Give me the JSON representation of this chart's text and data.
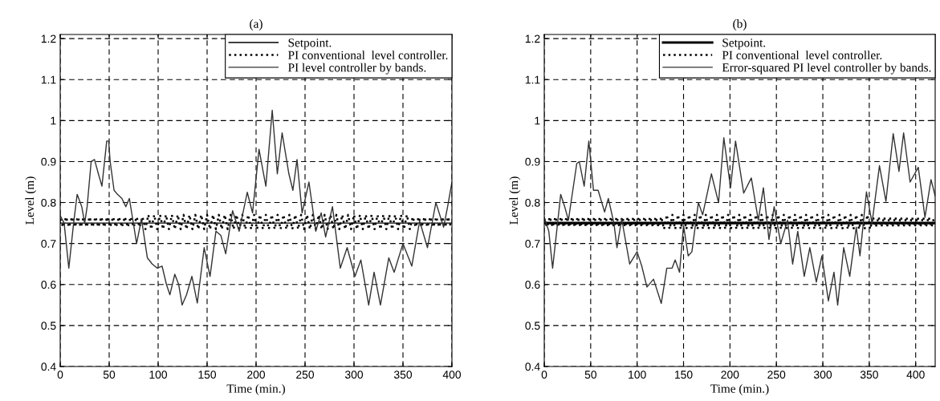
{
  "chart_data": [
    {
      "type": "line",
      "title": "(a)",
      "xlabel": "Time (min.)",
      "ylabel": "Level (m)",
      "xlim": [
        0,
        400
      ],
      "ylim": [
        0.4,
        1.21
      ],
      "xticks": [
        0,
        50,
        100,
        150,
        200,
        250,
        300,
        350,
        400
      ],
      "yticks": [
        0.4,
        0.5,
        0.6,
        0.7,
        0.8,
        0.9,
        1,
        1.1,
        1.2
      ],
      "grid": true,
      "legend": "top right",
      "series": [
        {
          "name": "Setpoint.",
          "color": "#000000",
          "line_style": "solid",
          "x": [
            0,
            400
          ],
          "values": [
            0.75,
            0.75
          ]
        },
        {
          "name": "PI conventional  level controller.",
          "color": "#000000",
          "line_style": "dotted",
          "x": [
            0,
            3,
            6,
            9,
            12,
            15,
            18,
            21,
            24,
            27,
            30,
            33,
            36,
            39,
            42,
            45,
            48,
            51,
            54,
            57,
            60,
            63,
            66,
            69,
            72,
            75,
            78,
            81,
            84,
            87,
            90,
            93,
            96,
            99,
            102,
            105,
            108,
            111,
            114,
            117,
            120,
            123,
            126,
            129,
            132,
            135,
            138,
            141,
            144,
            147,
            150,
            153,
            156,
            159,
            162,
            165,
            168,
            171,
            174,
            177,
            180,
            183,
            186,
            189,
            192,
            195,
            198,
            201,
            204,
            207,
            210,
            213,
            216,
            219,
            222,
            225,
            228,
            231,
            234,
            237,
            240,
            243,
            246,
            249,
            252,
            255,
            258,
            261,
            264,
            267,
            270,
            273,
            276,
            279,
            282,
            285,
            288,
            291,
            294,
            297,
            300,
            303,
            306,
            309,
            312,
            315,
            318,
            321,
            324,
            327,
            330,
            333,
            336,
            339,
            342,
            345,
            348,
            351,
            354,
            357,
            360,
            363,
            366,
            369,
            372,
            375,
            378,
            381,
            384,
            387,
            390,
            393,
            396,
            399
          ],
          "values": [
            0.76,
            0.74,
            0.765,
            0.74,
            0.765,
            0.74,
            0.765,
            0.74,
            0.765,
            0.74,
            0.765,
            0.74,
            0.765,
            0.74,
            0.765,
            0.74,
            0.765,
            0.74,
            0.765,
            0.74,
            0.765,
            0.74,
            0.765,
            0.74,
            0.765,
            0.74,
            0.765,
            0.74,
            0.765,
            0.735,
            0.77,
            0.735,
            0.77,
            0.735,
            0.77,
            0.735,
            0.77,
            0.735,
            0.77,
            0.735,
            0.77,
            0.735,
            0.77,
            0.735,
            0.77,
            0.735,
            0.77,
            0.735,
            0.77,
            0.735,
            0.77,
            0.735,
            0.77,
            0.735,
            0.77,
            0.735,
            0.77,
            0.735,
            0.77,
            0.735,
            0.77,
            0.735,
            0.77,
            0.735,
            0.77,
            0.735,
            0.77,
            0.735,
            0.77,
            0.735,
            0.77,
            0.735,
            0.77,
            0.735,
            0.77,
            0.735,
            0.77,
            0.735,
            0.77,
            0.735,
            0.77,
            0.735,
            0.77,
            0.735,
            0.77,
            0.735,
            0.77,
            0.735,
            0.77,
            0.735,
            0.77,
            0.735,
            0.77,
            0.735,
            0.77,
            0.735,
            0.77,
            0.735,
            0.77,
            0.735,
            0.77,
            0.735,
            0.77,
            0.735,
            0.77,
            0.735,
            0.77,
            0.735,
            0.77,
            0.735,
            0.77,
            0.735,
            0.77,
            0.735,
            0.77,
            0.735,
            0.77,
            0.735,
            0.77,
            0.735,
            0.765,
            0.74,
            0.765,
            0.74,
            0.765,
            0.74,
            0.765,
            0.74,
            0.765,
            0.74,
            0.765,
            0.74,
            0.765,
            0.74
          ]
        },
        {
          "name": "PI level controller by bands.",
          "color": "#333333",
          "line_style": "solid",
          "x": [
            0,
            4,
            8.8,
            13.7,
            17.3,
            22,
            25,
            27.5,
            31.6,
            35,
            39,
            42.6,
            47.5,
            49.5,
            51,
            55,
            58.5,
            63,
            67,
            70.6,
            74,
            78,
            83,
            89,
            94,
            99,
            104,
            108.5,
            112,
            117,
            121,
            124.5,
            129,
            134.5,
            140,
            147,
            153,
            159,
            164,
            169,
            176,
            182.7,
            191,
            196.4,
            203,
            210,
            216.5,
            221.7,
            226.6,
            233.5,
            237.6,
            241.8,
            247,
            254,
            261,
            266.5,
            271,
            278,
            286,
            293,
            301,
            307,
            315,
            320.5,
            327,
            335.5,
            341,
            350,
            359,
            367,
            375,
            383.6,
            391.5,
            395.6,
            400
          ],
          "values": [
            0.768,
            0.75,
            0.64,
            0.75,
            0.82,
            0.79,
            0.75,
            0.79,
            0.9,
            0.905,
            0.87,
            0.84,
            0.95,
            0.95,
            0.9,
            0.83,
            0.82,
            0.81,
            0.79,
            0.81,
            0.76,
            0.7,
            0.76,
            0.665,
            0.65,
            0.64,
            0.645,
            0.6,
            0.575,
            0.625,
            0.6,
            0.55,
            0.575,
            0.62,
            0.555,
            0.69,
            0.62,
            0.73,
            0.72,
            0.675,
            0.78,
            0.73,
            0.825,
            0.775,
            0.93,
            0.84,
            1.025,
            0.87,
            0.97,
            0.87,
            0.83,
            0.905,
            0.775,
            0.85,
            0.73,
            0.775,
            0.716,
            0.79,
            0.64,
            0.69,
            0.62,
            0.66,
            0.55,
            0.63,
            0.55,
            0.665,
            0.63,
            0.7,
            0.645,
            0.755,
            0.69,
            0.8,
            0.74,
            0.79,
            0.85
          ]
        }
      ]
    },
    {
      "type": "line",
      "title": "(b)",
      "xlabel": "Time (min.)",
      "ylabel": "Level (m)",
      "xlim": [
        0,
        421
      ],
      "ylim": [
        0.4,
        1.21
      ],
      "xticks": [
        0,
        50,
        100,
        150,
        200,
        250,
        300,
        350,
        400
      ],
      "yticks": [
        0.4,
        0.5,
        0.6,
        0.7,
        0.8,
        0.9,
        1,
        1.1,
        1.2
      ],
      "grid": true,
      "legend": "top right",
      "series": [
        {
          "name": "Setpoint.",
          "color": "#000000",
          "line_style": "solid",
          "x": [
            0,
            421
          ],
          "values": [
            0.75,
            0.75
          ]
        },
        {
          "name": "PI conventional  level controller.",
          "color": "#000000",
          "line_style": "dotted",
          "x": [
            0,
            3,
            6,
            9,
            12,
            15,
            18,
            21,
            24,
            27,
            30,
            33,
            36,
            39,
            42,
            45,
            48,
            51,
            54,
            57,
            60,
            63,
            66,
            69,
            72,
            75,
            78,
            81,
            84,
            87,
            90,
            93,
            96,
            99,
            102,
            105,
            108,
            111,
            114,
            117,
            120,
            123,
            126,
            129,
            132,
            135,
            138,
            141,
            144,
            147,
            150,
            153,
            156,
            159,
            162,
            165,
            168,
            171,
            174,
            177,
            180,
            183,
            186,
            189,
            192,
            195,
            198,
            201,
            204,
            207,
            210,
            213,
            216,
            219,
            222,
            225,
            228,
            231,
            234,
            237,
            240,
            243,
            246,
            249,
            252,
            255,
            258,
            261,
            264,
            267,
            270,
            273,
            276,
            279,
            282,
            285,
            288,
            291,
            294,
            297,
            300,
            303,
            306,
            309,
            312,
            315,
            318,
            321,
            324,
            327,
            330,
            333,
            336,
            339,
            342,
            345,
            348,
            351,
            354,
            357,
            360,
            363,
            366,
            369,
            372,
            375,
            378,
            381,
            384,
            387,
            390,
            393,
            396,
            399,
            402,
            405,
            408,
            411,
            414,
            417,
            420
          ],
          "values": [
            0.76,
            0.74,
            0.765,
            0.74,
            0.765,
            0.74,
            0.765,
            0.74,
            0.765,
            0.74,
            0.765,
            0.74,
            0.765,
            0.74,
            0.765,
            0.74,
            0.765,
            0.74,
            0.765,
            0.74,
            0.765,
            0.74,
            0.765,
            0.74,
            0.765,
            0.74,
            0.765,
            0.74,
            0.765,
            0.74,
            0.765,
            0.74,
            0.765,
            0.74,
            0.765,
            0.74,
            0.765,
            0.74,
            0.765,
            0.74,
            0.765,
            0.74,
            0.765,
            0.735,
            0.77,
            0.735,
            0.77,
            0.735,
            0.77,
            0.735,
            0.77,
            0.735,
            0.77,
            0.735,
            0.77,
            0.735,
            0.77,
            0.735,
            0.77,
            0.735,
            0.77,
            0.735,
            0.77,
            0.735,
            0.77,
            0.735,
            0.77,
            0.735,
            0.77,
            0.735,
            0.77,
            0.735,
            0.77,
            0.735,
            0.77,
            0.735,
            0.77,
            0.735,
            0.77,
            0.735,
            0.77,
            0.735,
            0.77,
            0.735,
            0.77,
            0.735,
            0.77,
            0.735,
            0.77,
            0.735,
            0.77,
            0.735,
            0.77,
            0.735,
            0.77,
            0.735,
            0.77,
            0.735,
            0.77,
            0.735,
            0.77,
            0.735,
            0.77,
            0.735,
            0.77,
            0.735,
            0.77,
            0.735,
            0.77,
            0.735,
            0.77,
            0.735,
            0.77,
            0.735,
            0.77,
            0.735,
            0.77,
            0.735,
            0.765,
            0.74,
            0.765,
            0.74,
            0.765,
            0.74,
            0.765,
            0.74,
            0.765,
            0.74,
            0.765,
            0.74,
            0.765,
            0.74,
            0.765,
            0.74,
            0.765,
            0.74,
            0.765,
            0.74,
            0.765,
            0.74,
            0.765
          ]
        },
        {
          "name": "Error-squared PI level controller by bands.",
          "color": "#333333",
          "line_style": "solid",
          "x": [
            0,
            4.9,
            9,
            13.4,
            17.7,
            22,
            26,
            35,
            37.7,
            43,
            48,
            53,
            58,
            65,
            69,
            75,
            78.3,
            83.4,
            92,
            100,
            105,
            110.6,
            117.7,
            126,
            132,
            137.7,
            141,
            145.7,
            150,
            155,
            159,
            166,
            170.6,
            180,
            187.7,
            193.4,
            200.6,
            206,
            214.8,
            223,
            230.5,
            236,
            242,
            247.6,
            254.7,
            262,
            267.5,
            273,
            280,
            286,
            293,
            299,
            306,
            312,
            316,
            322.5,
            329,
            336,
            340,
            347,
            353,
            361,
            368,
            375.8,
            382,
            387,
            394,
            402.8,
            410,
            416.5,
            421
          ],
          "values": [
            0.764,
            0.73,
            0.64,
            0.73,
            0.82,
            0.79,
            0.757,
            0.895,
            0.9,
            0.84,
            0.95,
            0.83,
            0.83,
            0.777,
            0.81,
            0.75,
            0.69,
            0.76,
            0.65,
            0.68,
            0.645,
            0.594,
            0.613,
            0.554,
            0.64,
            0.64,
            0.66,
            0.63,
            0.744,
            0.67,
            0.68,
            0.8,
            0.77,
            0.87,
            0.8,
            0.958,
            0.836,
            0.95,
            0.823,
            0.86,
            0.757,
            0.836,
            0.71,
            0.79,
            0.7,
            0.757,
            0.65,
            0.73,
            0.62,
            0.69,
            0.606,
            0.67,
            0.56,
            0.63,
            0.55,
            0.69,
            0.62,
            0.74,
            0.67,
            0.826,
            0.75,
            0.89,
            0.803,
            0.968,
            0.876,
            0.97,
            0.85,
            0.886,
            0.764,
            0.856,
            0.816
          ]
        }
      ]
    }
  ]
}
